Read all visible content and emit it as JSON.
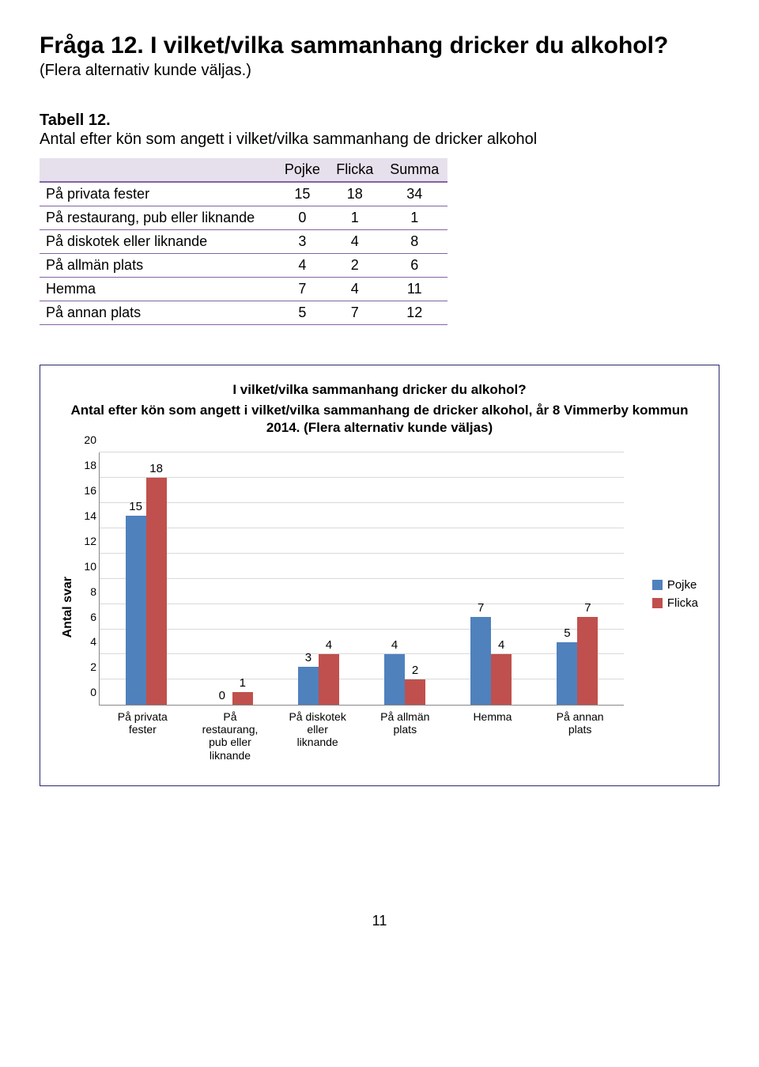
{
  "question": {
    "title": "Fråga 12. I vilket/vilka sammanhang dricker du alkohol?",
    "subtitle": "(Flera alternativ kunde väljas.)"
  },
  "table": {
    "title": "Tabell 12.",
    "desc": "Antal efter kön som angett i vilket/vilka sammanhang de dricker alkohol",
    "columns": [
      "",
      "Pojke",
      "Flicka",
      "Summa"
    ],
    "rows": [
      [
        "På privata fester",
        "15",
        "18",
        "34"
      ],
      [
        "På restaurang, pub eller liknande",
        "0",
        "1",
        "1"
      ],
      [
        "På diskotek eller liknande",
        "3",
        "4",
        "8"
      ],
      [
        "På allmän plats",
        "4",
        "2",
        "6"
      ],
      [
        "Hemma",
        "7",
        "4",
        "11"
      ],
      [
        "På annan plats",
        "5",
        "7",
        "12"
      ]
    ]
  },
  "chart": {
    "title_line1": "I vilket/vilka sammanhang dricker du alkohol?",
    "title_line2": "Antal efter kön som angett i vilket/vilka sammanhang de dricker alkohol, år 8 Vimmerby kommun 2014. (Flera alternativ kunde väljas)",
    "y_label": "Antal svar",
    "y_max": 20,
    "y_tick_step": 2,
    "categories": [
      "På privata fester",
      "På restaurang, pub eller liknande",
      "På diskotek eller liknande",
      "På allmän plats",
      "Hemma",
      "På annan plats"
    ],
    "series": [
      {
        "name": "Pojke",
        "color": "#4f81bd",
        "values": [
          15,
          0,
          3,
          4,
          7,
          5
        ]
      },
      {
        "name": "Flicka",
        "color": "#c0504d",
        "values": [
          18,
          1,
          4,
          2,
          4,
          7
        ]
      }
    ],
    "grid_color": "#d9d9d9"
  },
  "page_number": "11"
}
